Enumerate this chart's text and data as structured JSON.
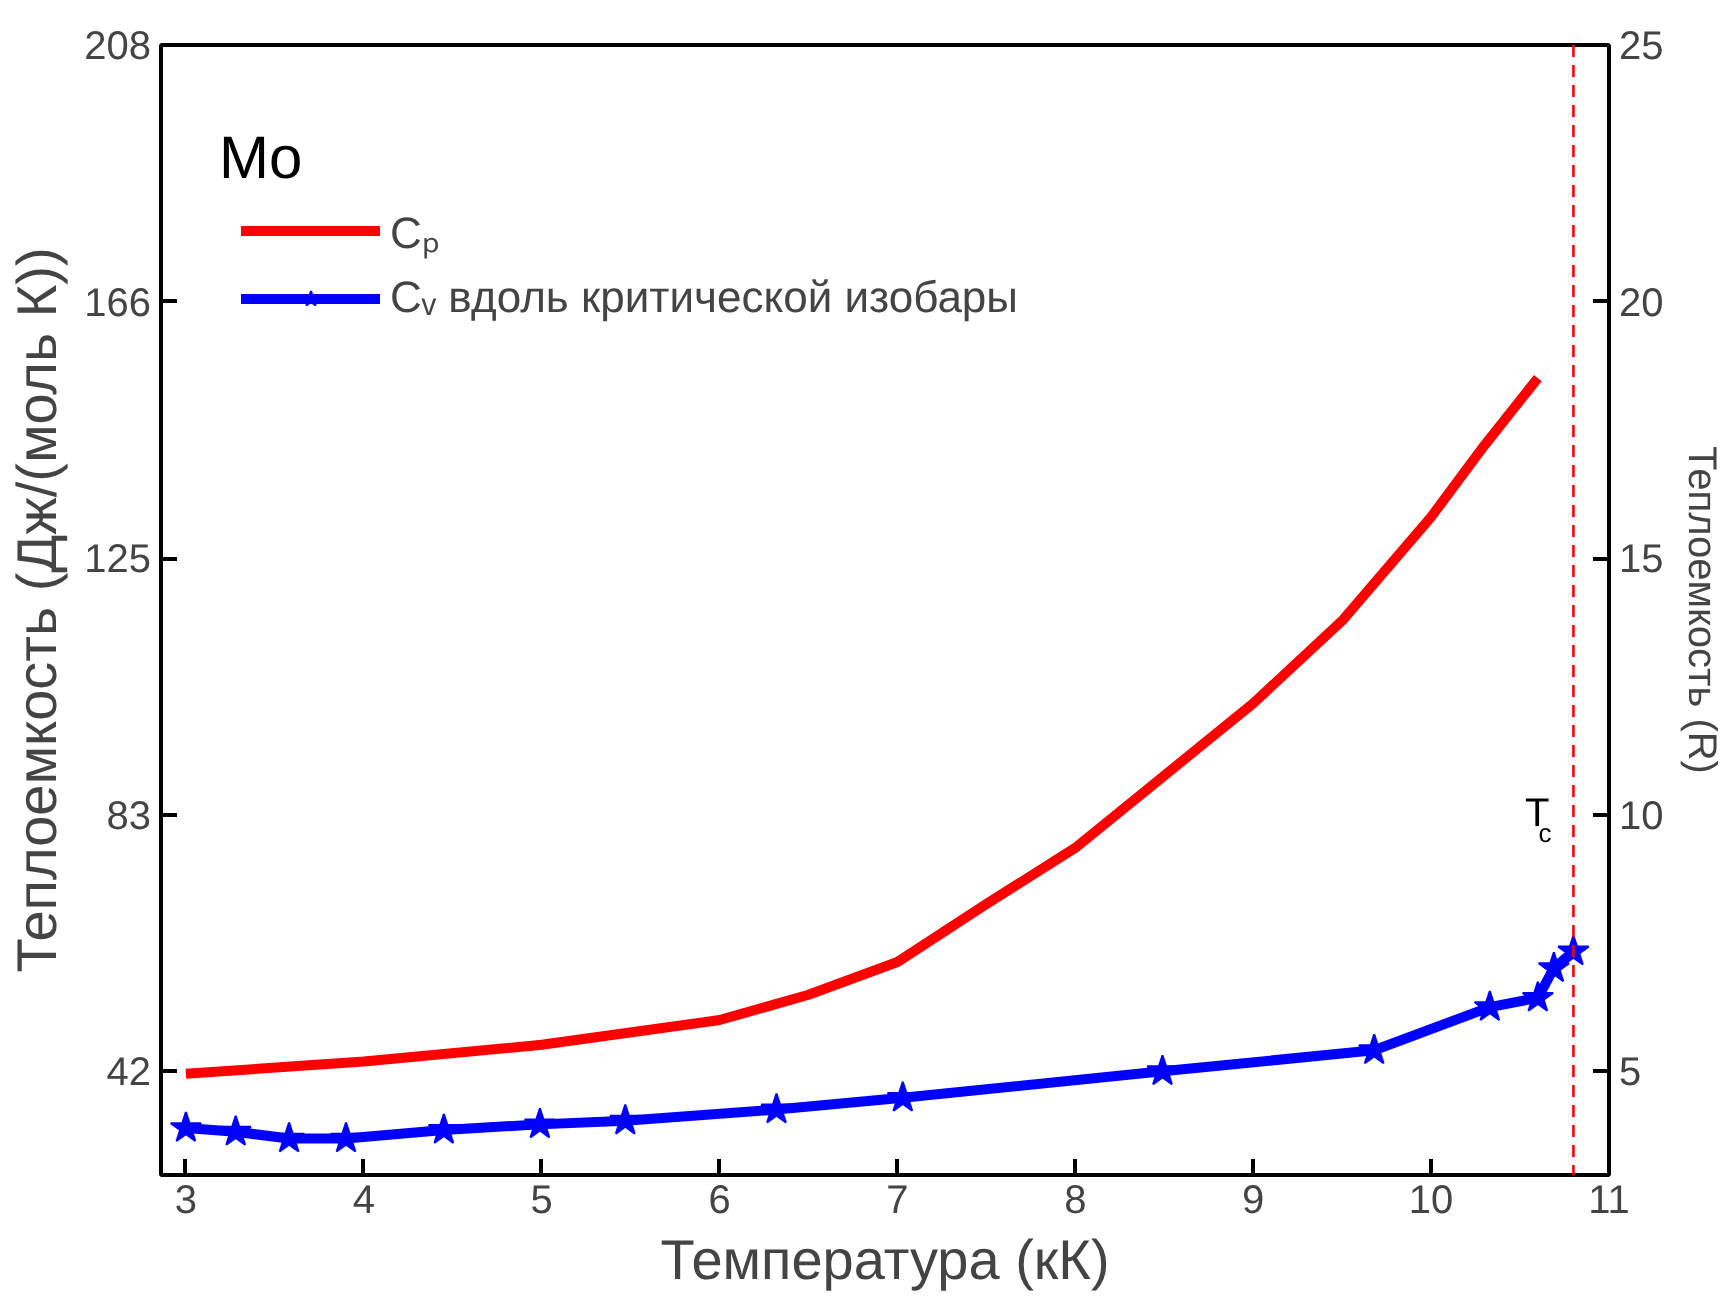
{
  "chart_data": {
    "type": "line",
    "title": "Mo",
    "xlabel": "Температура (кК)",
    "ylabel": "Теплоемкость (Дж/(моль К))",
    "y2label": "Теплоемкость (R)",
    "xlim": [
      2.86,
      11
    ],
    "xticks": [
      3,
      4,
      5,
      6,
      7,
      8,
      9,
      10,
      11
    ],
    "ylim": [
      24.8,
      207.85
    ],
    "yticks": [
      {
        "value": 41.57,
        "label": "42"
      },
      {
        "value": 83.14,
        "label": "83"
      },
      {
        "value": 124.71,
        "label": "125"
      },
      {
        "value": 166.28,
        "label": "166"
      },
      {
        "value": 207.85,
        "label": "208"
      }
    ],
    "y2lim": [
      2.98,
      25
    ],
    "y2ticks": [
      5,
      10,
      15,
      20,
      25
    ],
    "grid": false,
    "legend": "top left",
    "series": [
      {
        "name": "Cₚ",
        "color": "#ff0000",
        "marker": "none",
        "x": [
          3,
          4,
          5,
          6,
          6.5,
          7,
          7.5,
          8,
          8.5,
          9,
          9.5,
          10,
          10.3,
          10.6
        ],
        "values": [
          41.2,
          43.2,
          45.9,
          49.9,
          54,
          59.3,
          68.7,
          77.8,
          89.5,
          101.2,
          114.6,
          131.4,
          143,
          153.9
        ]
      },
      {
        "name": "Cᵥ вдоль критической изобары",
        "color": "#0000ff",
        "marker": "star",
        "x": [
          3.0,
          3.28,
          3.58,
          3.9,
          4.45,
          4.99,
          5.47,
          6.32,
          7.03,
          8.49,
          9.68,
          10.33,
          10.6,
          10.69,
          10.8
        ],
        "values": [
          32.4,
          31.8,
          30.7,
          30.7,
          32.1,
          33.0,
          33.6,
          35.4,
          37.3,
          41.6,
          45.0,
          52.0,
          53.5,
          58.3,
          61.0
        ]
      }
    ],
    "ref_lines": [
      {
        "axis": "x",
        "value": 10.8,
        "label": "T$_{c}$",
        "color": "#ff0000",
        "line_style": "dashed"
      }
    ]
  }
}
